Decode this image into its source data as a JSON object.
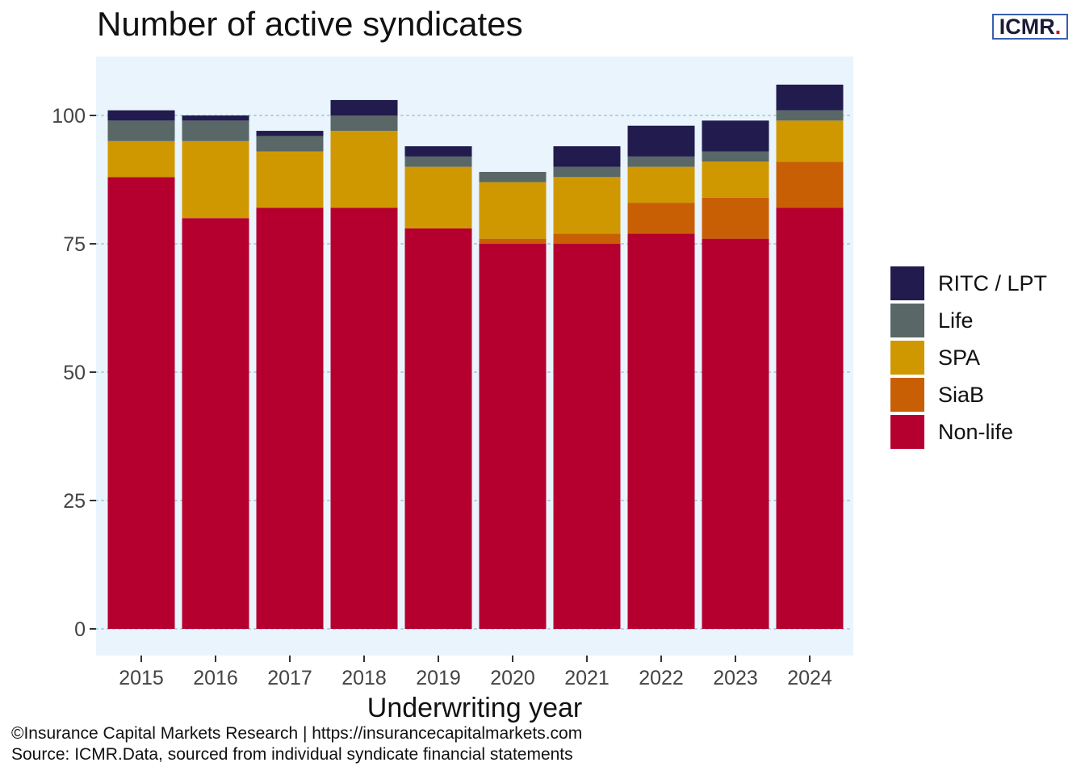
{
  "title": "Number of active syndicates",
  "logo": {
    "text": "ICMR",
    "dot": "."
  },
  "footer": {
    "line1": "©Insurance Capital Markets Research | https://insurancecapitalmarkets.com",
    "line2": "Source: ICMR.Data, sourced from individual syndicate financial statements"
  },
  "colors": {
    "panel_background": "#eaf4fd",
    "gridline": "#a9d3e3"
  },
  "chart_data": {
    "type": "bar",
    "stacked": true,
    "title": "Number of active syndicates",
    "xlabel": "Underwriting year",
    "ylabel": "",
    "ylim": [
      0,
      110
    ],
    "yticks": [
      0,
      25,
      50,
      75,
      100
    ],
    "categories": [
      "2015",
      "2016",
      "2017",
      "2018",
      "2019",
      "2020",
      "2021",
      "2022",
      "2023",
      "2024"
    ],
    "legend_position": "right",
    "series": [
      {
        "name": "Non-life",
        "color": "#b5002f",
        "values": [
          88,
          80,
          82,
          82,
          78,
          75,
          75,
          77,
          76,
          82
        ]
      },
      {
        "name": "SiaB",
        "color": "#c95f05",
        "values": [
          0,
          0,
          0,
          0,
          0,
          1,
          2,
          6,
          8,
          9
        ]
      },
      {
        "name": "SPA",
        "color": "#d09800",
        "values": [
          7,
          15,
          11,
          15,
          12,
          11,
          11,
          7,
          7,
          8
        ]
      },
      {
        "name": "Life",
        "color": "#596766",
        "values": [
          4,
          4,
          3,
          3,
          2,
          2,
          2,
          2,
          2,
          2
        ]
      },
      {
        "name": "RITC / LPT",
        "color": "#211b4e",
        "values": [
          2,
          1,
          1,
          3,
          2,
          0,
          4,
          6,
          6,
          5
        ]
      }
    ]
  }
}
